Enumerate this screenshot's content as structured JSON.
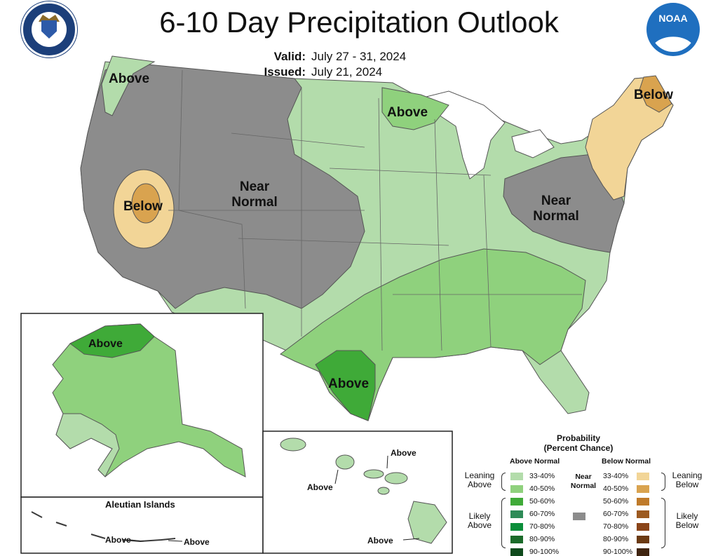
{
  "header": {
    "title": "6-10 Day Precipitation Outlook",
    "valid_label": "Valid:",
    "valid_value": "July 27 - 31, 2024",
    "issued_label": "Issued:",
    "issued_value": "July 21, 2024"
  },
  "logos": {
    "left": "department-of-commerce-seal",
    "right": "noaa-logo",
    "noaa_text": "NOAA"
  },
  "labels": {
    "pacific_nw": "Above",
    "minnesota": "Above",
    "maine": "Below",
    "nevada": "Below",
    "west": "Near Normal",
    "northeast": "Near Normal",
    "texas": "Above",
    "alaska": "Above",
    "hawaii_kauai": "Above",
    "hawaii_maui": "Above",
    "hawaii_big_island": "Above",
    "aleutian_west": "Above",
    "aleutian_east": "Above"
  },
  "insets": {
    "aleutian_title": "Aleutian Islands"
  },
  "legend": {
    "title": "Probability\n(Percent Chance)",
    "above_header": "Above Normal",
    "below_header": "Below Normal",
    "near_normal": "Near\nNormal",
    "leaning_above": "Leaning\nAbove",
    "likely_above": "Likely\nAbove",
    "leaning_below": "Leaning\nBelow",
    "likely_below": "Likely\nBelow",
    "above_rows": [
      {
        "range": "33-40%",
        "color": "#b3dcab"
      },
      {
        "range": "40-50%",
        "color": "#8fd17d"
      },
      {
        "range": "50-60%",
        "color": "#3faa38"
      },
      {
        "range": "60-70%",
        "color": "#2e8b57"
      },
      {
        "range": "70-80%",
        "color": "#0b8e3a"
      },
      {
        "range": "80-90%",
        "color": "#1b6b2a"
      },
      {
        "range": "90-100%",
        "color": "#0f4a1c"
      }
    ],
    "below_rows": [
      {
        "range": "33-40%",
        "color": "#f2d597"
      },
      {
        "range": "40-50%",
        "color": "#d9a34f"
      },
      {
        "range": "50-60%",
        "color": "#bf7a2a"
      },
      {
        "range": "60-70%",
        "color": "#9c5a20"
      },
      {
        "range": "70-80%",
        "color": "#8a4418"
      },
      {
        "range": "80-90%",
        "color": "#6b3a12"
      },
      {
        "range": "90-100%",
        "color": "#3f2410"
      }
    ],
    "near_color": "#8c8c8c"
  },
  "colors": {
    "near_normal": "#8c8c8c",
    "above_33_40": "#b3dcab",
    "above_40_50": "#8fd17d",
    "above_50_60": "#3faa38",
    "below_33_40": "#f2d597",
    "below_40_50": "#d9a34f"
  }
}
